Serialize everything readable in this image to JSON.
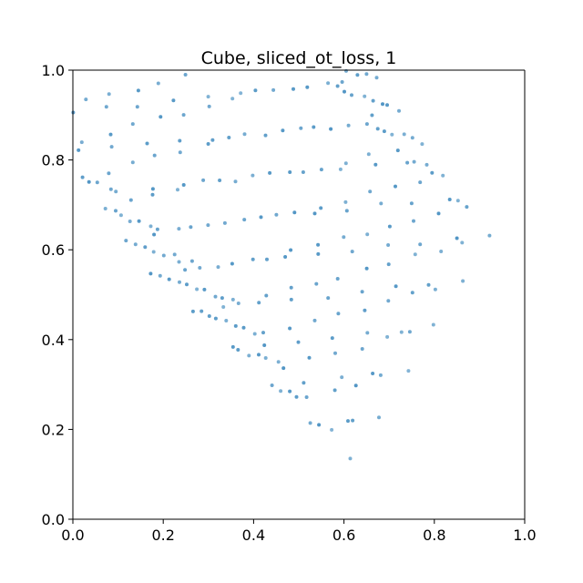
{
  "chart_data": {
    "type": "scatter",
    "title": "Cube, sliced_ot_loss, 1",
    "xlabel": "",
    "ylabel": "",
    "xlim": [
      0.0,
      1.0
    ],
    "ylim": [
      0.0,
      1.0
    ],
    "x_ticks": [
      "0.0",
      "0.2",
      "0.4",
      "0.6",
      "0.8",
      "1.0"
    ],
    "y_ticks": [
      "0.0",
      "0.2",
      "0.4",
      "0.6",
      "0.8",
      "1.0"
    ],
    "grid": false,
    "legend": "none",
    "marker_color": "#1f77b4",
    "projection": {
      "grid_steps": 10,
      "origin": [
        0.62,
        0.13
      ],
      "u_axis": [
        -0.05,
        0.07
      ],
      "v_axis": [
        -0.045,
        0.042
      ],
      "w_axis": [
        0.03,
        0.05
      ],
      "noise": 0.006
    }
  }
}
